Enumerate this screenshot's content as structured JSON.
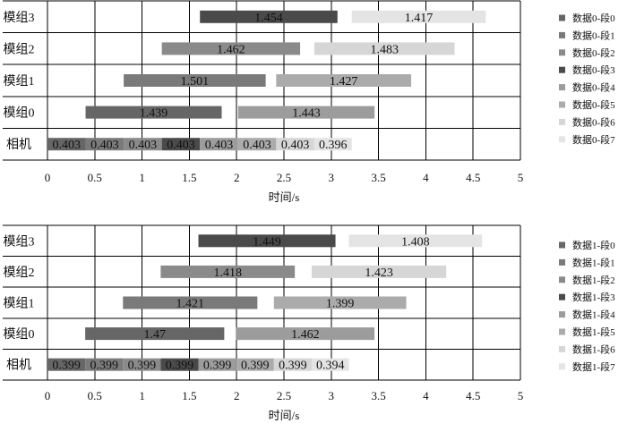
{
  "chart_data": [
    {
      "type": "bar",
      "orientation": "horizontal",
      "categories": [
        "模组3",
        "模组2",
        "模组1",
        "模组0",
        "相机"
      ],
      "xlabel": "时间/s",
      "xlim": [
        0,
        5
      ],
      "xticks": [
        0,
        0.5,
        1,
        1.5,
        2,
        2.5,
        3,
        3.5,
        4,
        4.5,
        5
      ],
      "grid": true,
      "legend_position": "right",
      "series": [
        {
          "name": "数据0-段0",
          "color": "#666666",
          "bars": [
            {
              "category": "相机",
              "start": 0,
              "value": 0.403
            },
            {
              "category": "模组0",
              "start": 0.403,
              "value": 1.439
            }
          ]
        },
        {
          "name": "数据0-段1",
          "color": "#7a7a7a",
          "bars": [
            {
              "category": "相机",
              "start": 0.403,
              "value": 0.403
            },
            {
              "category": "模组1",
              "start": 0.806,
              "value": 1.501
            }
          ]
        },
        {
          "name": "数据0-段2",
          "color": "#8a8a8a",
          "bars": [
            {
              "category": "相机",
              "start": 0.806,
              "value": 0.403
            },
            {
              "category": "模组2",
              "start": 1.209,
              "value": 1.462
            }
          ]
        },
        {
          "name": "数据0-段3",
          "color": "#4a4a4a",
          "bars": [
            {
              "category": "相机",
              "start": 1.209,
              "value": 0.403
            },
            {
              "category": "模组3",
              "start": 1.612,
              "value": 1.454
            }
          ]
        },
        {
          "name": "数据0-段4",
          "color": "#9c9c9c",
          "bars": [
            {
              "category": "相机",
              "start": 1.612,
              "value": 0.403
            },
            {
              "category": "模组0",
              "start": 2.015,
              "value": 1.443
            }
          ]
        },
        {
          "name": "数据0-段5",
          "color": "#ababab",
          "bars": [
            {
              "category": "相机",
              "start": 2.015,
              "value": 0.403
            },
            {
              "category": "模组1",
              "start": 2.418,
              "value": 1.427
            }
          ]
        },
        {
          "name": "数据0-段6",
          "color": "#d6d6d6",
          "bars": [
            {
              "category": "相机",
              "start": 2.418,
              "value": 0.403
            },
            {
              "category": "模组2",
              "start": 2.821,
              "value": 1.483
            }
          ]
        },
        {
          "name": "数据0-段7",
          "color": "#e4e4e4",
          "bars": [
            {
              "category": "相机",
              "start": 2.821,
              "value": 0.396
            },
            {
              "category": "模组3",
              "start": 3.217,
              "value": 1.417
            }
          ]
        }
      ]
    },
    {
      "type": "bar",
      "orientation": "horizontal",
      "categories": [
        "模组3",
        "模组2",
        "模组1",
        "模组0",
        "相机"
      ],
      "xlabel": "时间/s",
      "xlim": [
        0,
        5
      ],
      "xticks": [
        0,
        0.5,
        1,
        1.5,
        2,
        2.5,
        3,
        3.5,
        4,
        4.5,
        5
      ],
      "grid": true,
      "legend_position": "right",
      "series": [
        {
          "name": "数据1-段0",
          "color": "#666666",
          "bars": [
            {
              "category": "相机",
              "start": 0,
              "value": 0.399
            },
            {
              "category": "模组0",
              "start": 0.399,
              "value": 1.47
            }
          ]
        },
        {
          "name": "数据1-段1",
          "color": "#7a7a7a",
          "bars": [
            {
              "category": "相机",
              "start": 0.399,
              "value": 0.399
            },
            {
              "category": "模组1",
              "start": 0.798,
              "value": 1.421
            }
          ]
        },
        {
          "name": "数据1-段2",
          "color": "#8a8a8a",
          "bars": [
            {
              "category": "相机",
              "start": 0.798,
              "value": 0.399
            },
            {
              "category": "模组2",
              "start": 1.197,
              "value": 1.418
            }
          ]
        },
        {
          "name": "数据1-段3",
          "color": "#4a4a4a",
          "bars": [
            {
              "category": "相机",
              "start": 1.197,
              "value": 0.399
            },
            {
              "category": "模组3",
              "start": 1.596,
              "value": 1.449
            }
          ]
        },
        {
          "name": "数据1-段4",
          "color": "#9c9c9c",
          "bars": [
            {
              "category": "相机",
              "start": 1.596,
              "value": 0.399
            },
            {
              "category": "模组0",
              "start": 1.995,
              "value": 1.462
            }
          ]
        },
        {
          "name": "数据1-段5",
          "color": "#ababab",
          "bars": [
            {
              "category": "相机",
              "start": 1.995,
              "value": 0.399
            },
            {
              "category": "模组1",
              "start": 2.394,
              "value": 1.399
            }
          ]
        },
        {
          "name": "数据1-段6",
          "color": "#d6d6d6",
          "bars": [
            {
              "category": "相机",
              "start": 2.394,
              "value": 0.399
            },
            {
              "category": "模组2",
              "start": 2.793,
              "value": 1.423
            }
          ]
        },
        {
          "name": "数据1-段7",
          "color": "#e4e4e4",
          "bars": [
            {
              "category": "相机",
              "start": 2.793,
              "value": 0.394
            },
            {
              "category": "模组3",
              "start": 3.187,
              "value": 1.408
            }
          ]
        }
      ]
    }
  ]
}
